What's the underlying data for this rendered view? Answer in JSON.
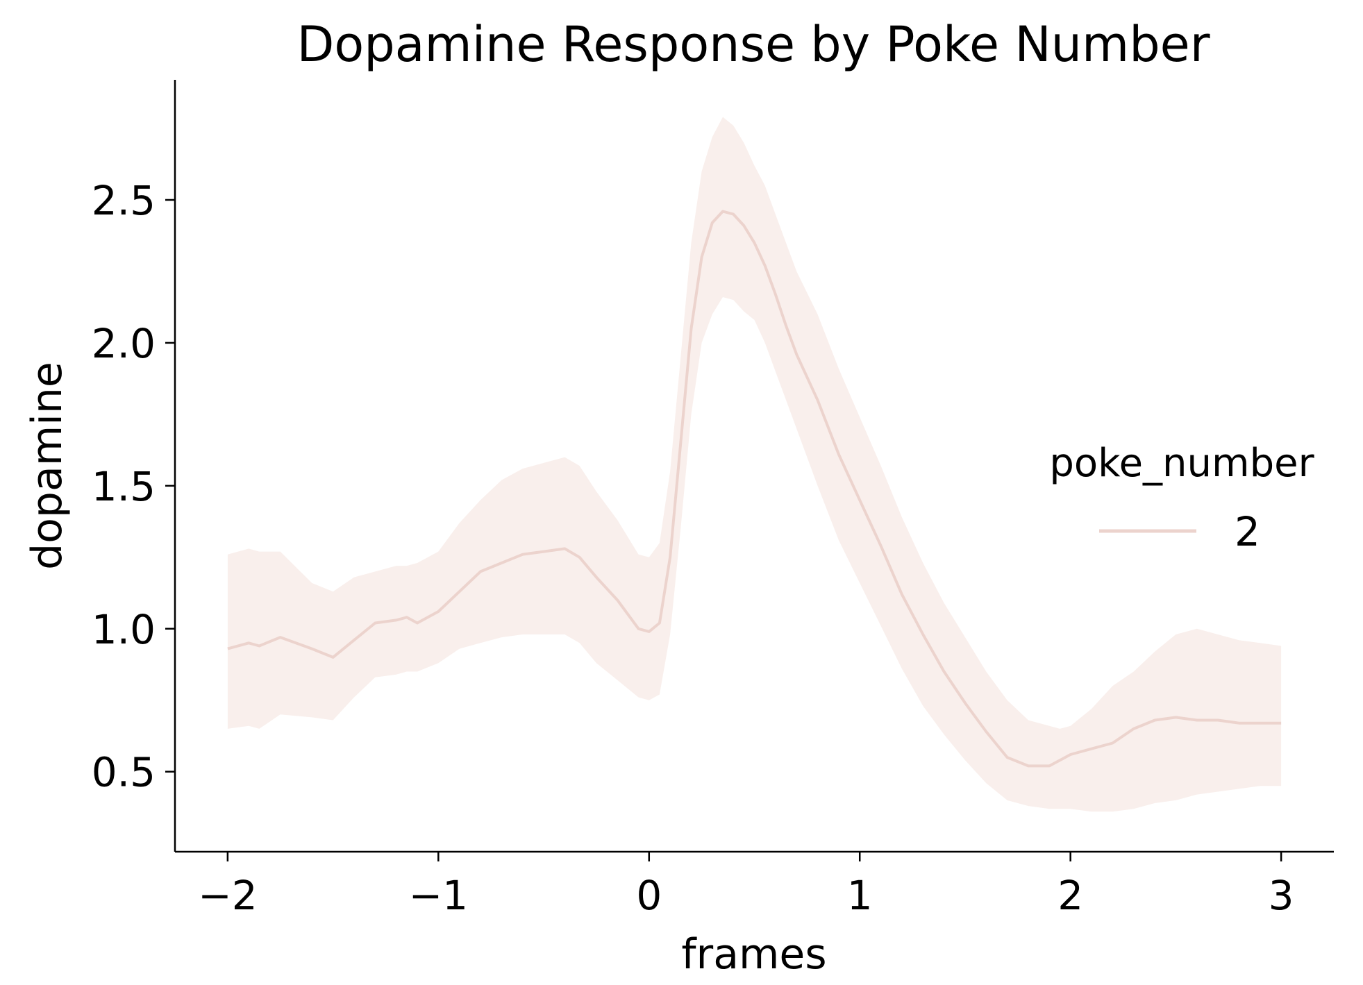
{
  "chart_data": {
    "type": "line",
    "title": "Dopamine Response by Poke Number",
    "xlabel": "frames",
    "ylabel": "dopamine",
    "xlim": [
      -2.25,
      3.25
    ],
    "ylim": [
      0.22,
      2.92
    ],
    "x_ticks": [
      -2,
      -1,
      0,
      1,
      2,
      3
    ],
    "x_tick_labels": [
      "−2",
      "−1",
      "0",
      "1",
      "2",
      "3"
    ],
    "y_ticks": [
      0.5,
      1.0,
      1.5,
      2.0,
      2.5
    ],
    "y_tick_labels": [
      "0.5",
      "1.0",
      "1.5",
      "2.0",
      "2.5"
    ],
    "grid": false,
    "legend": {
      "title": "poke_number",
      "placement": "center-right"
    },
    "series": [
      {
        "name": "2",
        "color": "#ecd3cd",
        "band_color": "#f9efec",
        "x": [
          -2.0,
          -1.9,
          -1.85,
          -1.75,
          -1.6,
          -1.5,
          -1.4,
          -1.3,
          -1.2,
          -1.15,
          -1.1,
          -1.0,
          -0.9,
          -0.8,
          -0.7,
          -0.6,
          -0.5,
          -0.4,
          -0.33,
          -0.25,
          -0.15,
          -0.05,
          0.0,
          0.05,
          0.1,
          0.15,
          0.2,
          0.25,
          0.3,
          0.35,
          0.4,
          0.45,
          0.5,
          0.55,
          0.6,
          0.65,
          0.7,
          0.8,
          0.9,
          1.0,
          1.1,
          1.2,
          1.3,
          1.4,
          1.5,
          1.6,
          1.7,
          1.8,
          1.9,
          1.95,
          2.0,
          2.1,
          2.2,
          2.3,
          2.4,
          2.5,
          2.6,
          2.7,
          2.8,
          2.9,
          3.0
        ],
        "y": [
          0.93,
          0.95,
          0.94,
          0.97,
          0.93,
          0.9,
          0.96,
          1.02,
          1.03,
          1.04,
          1.02,
          1.06,
          1.13,
          1.2,
          1.23,
          1.26,
          1.27,
          1.28,
          1.25,
          1.18,
          1.1,
          1.0,
          0.99,
          1.02,
          1.25,
          1.65,
          2.05,
          2.3,
          2.42,
          2.46,
          2.45,
          2.41,
          2.35,
          2.27,
          2.17,
          2.06,
          1.96,
          1.8,
          1.61,
          1.45,
          1.29,
          1.12,
          0.98,
          0.85,
          0.74,
          0.64,
          0.55,
          0.52,
          0.52,
          0.54,
          0.56,
          0.58,
          0.6,
          0.65,
          0.68,
          0.69,
          0.68,
          0.68,
          0.67,
          0.67,
          0.67
        ],
        "upper": [
          1.26,
          1.28,
          1.27,
          1.27,
          1.16,
          1.13,
          1.18,
          1.2,
          1.22,
          1.22,
          1.23,
          1.27,
          1.37,
          1.45,
          1.52,
          1.56,
          1.58,
          1.6,
          1.57,
          1.48,
          1.38,
          1.26,
          1.25,
          1.3,
          1.55,
          1.95,
          2.35,
          2.6,
          2.72,
          2.79,
          2.76,
          2.7,
          2.62,
          2.55,
          2.45,
          2.35,
          2.25,
          2.1,
          1.91,
          1.74,
          1.57,
          1.39,
          1.23,
          1.09,
          0.97,
          0.85,
          0.75,
          0.68,
          0.66,
          0.65,
          0.66,
          0.72,
          0.8,
          0.85,
          0.92,
          0.98,
          1.0,
          0.98,
          0.96,
          0.95,
          0.94
        ],
        "lower": [
          0.65,
          0.66,
          0.65,
          0.7,
          0.69,
          0.68,
          0.76,
          0.83,
          0.84,
          0.85,
          0.85,
          0.88,
          0.93,
          0.95,
          0.97,
          0.98,
          0.98,
          0.98,
          0.95,
          0.88,
          0.82,
          0.76,
          0.75,
          0.77,
          0.98,
          1.35,
          1.75,
          2.0,
          2.1,
          2.16,
          2.15,
          2.11,
          2.08,
          2.0,
          1.9,
          1.8,
          1.7,
          1.5,
          1.31,
          1.16,
          1.01,
          0.86,
          0.73,
          0.63,
          0.54,
          0.46,
          0.4,
          0.38,
          0.37,
          0.37,
          0.37,
          0.36,
          0.36,
          0.37,
          0.39,
          0.4,
          0.42,
          0.43,
          0.44,
          0.45,
          0.45
        ]
      }
    ]
  }
}
